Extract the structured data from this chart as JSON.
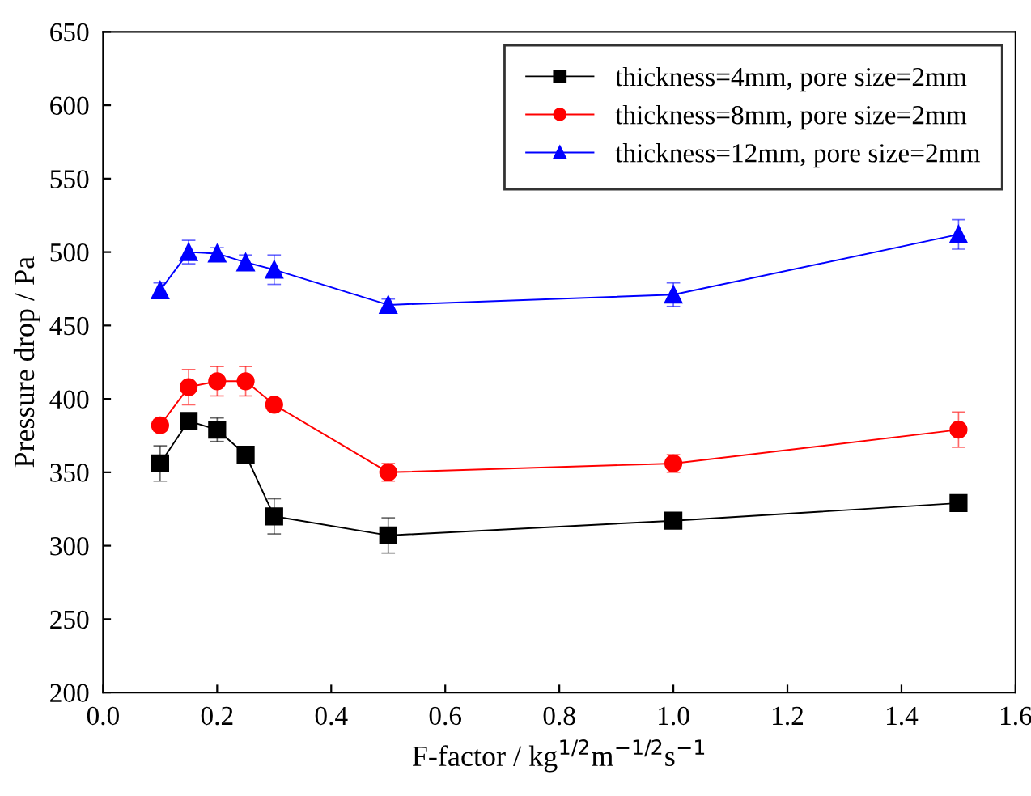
{
  "chart_data": {
    "type": "line",
    "xlabel": "F-factor / kg$^{1/2}$m$^{−1/2}$s$^{−1}$",
    "ylabel": "Pressure drop / Pa",
    "x": [
      0.1,
      0.15,
      0.2,
      0.25,
      0.3,
      0.5,
      1.0,
      1.5
    ],
    "series": [
      {
        "name": "thickness=4mm, pore size=2mm",
        "color": "#000000",
        "marker": "square",
        "values": [
          356,
          385,
          379,
          362,
          320,
          307,
          317,
          329
        ],
        "errors": [
          12,
          5,
          8,
          4,
          12,
          12,
          4,
          5
        ]
      },
      {
        "name": "thickness=8mm, pore size=2mm",
        "color": "#ff0000",
        "marker": "circle",
        "values": [
          382,
          408,
          412,
          412,
          396,
          350,
          356,
          379
        ],
        "errors": [
          4,
          12,
          10,
          10,
          4,
          6,
          6,
          12
        ]
      },
      {
        "name": "thickness=12mm, pore size=2mm",
        "color": "#0000ff",
        "marker": "triangle",
        "values": [
          474,
          500,
          499,
          493,
          488,
          464,
          471,
          512
        ],
        "errors": [
          5,
          8,
          4,
          5,
          10,
          4,
          8,
          10
        ]
      }
    ],
    "xlim": [
      0.0,
      1.6
    ],
    "xticks": [
      {
        "value": 0,
        "label": "0.0"
      },
      0.2,
      0.4,
      0.6,
      0.8,
      {
        "value": 1,
        "label": "1.0"
      },
      1.2,
      1.4,
      1.6
    ],
    "ylim": [
      200,
      650
    ],
    "yticks": [
      200,
      250,
      300,
      350,
      400,
      450,
      500,
      550,
      600,
      650
    ],
    "grid": false,
    "legend": "top right",
    "line_style": "solid"
  }
}
